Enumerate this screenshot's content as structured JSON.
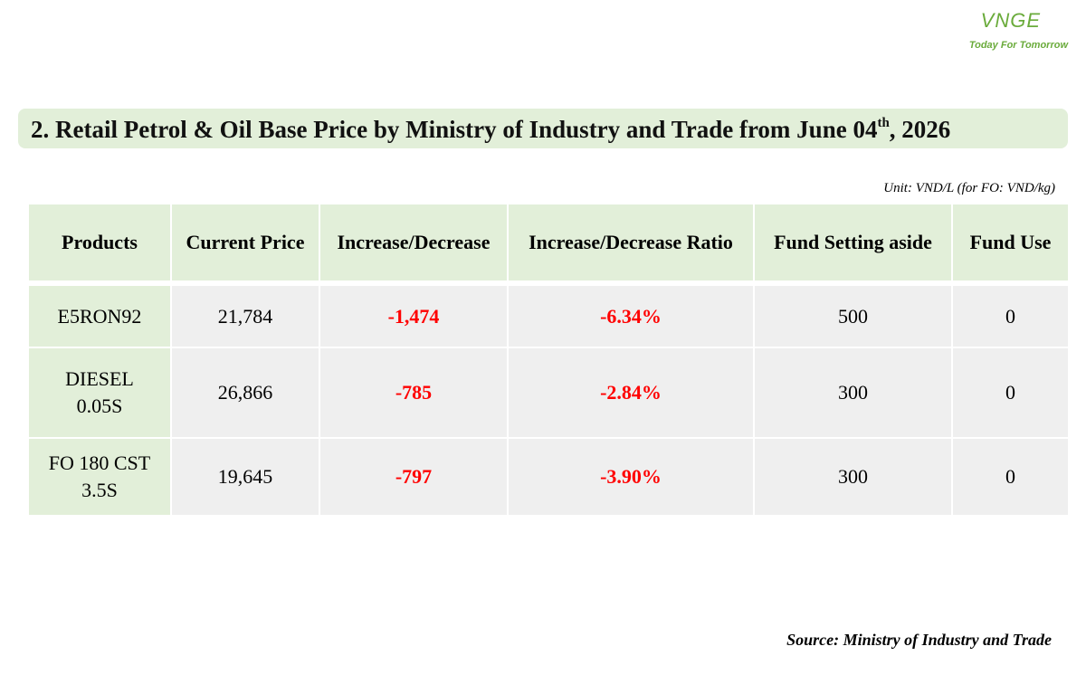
{
  "logo": {
    "brand": "VNGE",
    "tagline": "Today For Tomorrow"
  },
  "title": {
    "main": "2. Retail Petrol & Oil Base Price by Ministry of Industry and Trade from June 04",
    "sup": "th",
    "tail": ", 2026"
  },
  "unit": "Unit: VND/L (for FO: VND/kg)",
  "table": {
    "header": [
      "Products",
      "Current Price",
      "Increase/Decrease",
      "Increase/Decrease Ratio",
      "Fund Setting aside",
      "Fund Use"
    ],
    "rows": [
      [
        "E5RON92",
        "21,784",
        "-1,474",
        "-6.34%",
        "500",
        "0"
      ],
      [
        "DIESEL 0.05S",
        "26,866",
        "-785",
        "-2.84%",
        "300",
        "0"
      ],
      [
        "FO 180 CST 3.5S",
        "19,645",
        "-797",
        "-3.90%",
        "300",
        "0"
      ]
    ]
  },
  "source": "Source: Ministry of Industry and Trade"
}
